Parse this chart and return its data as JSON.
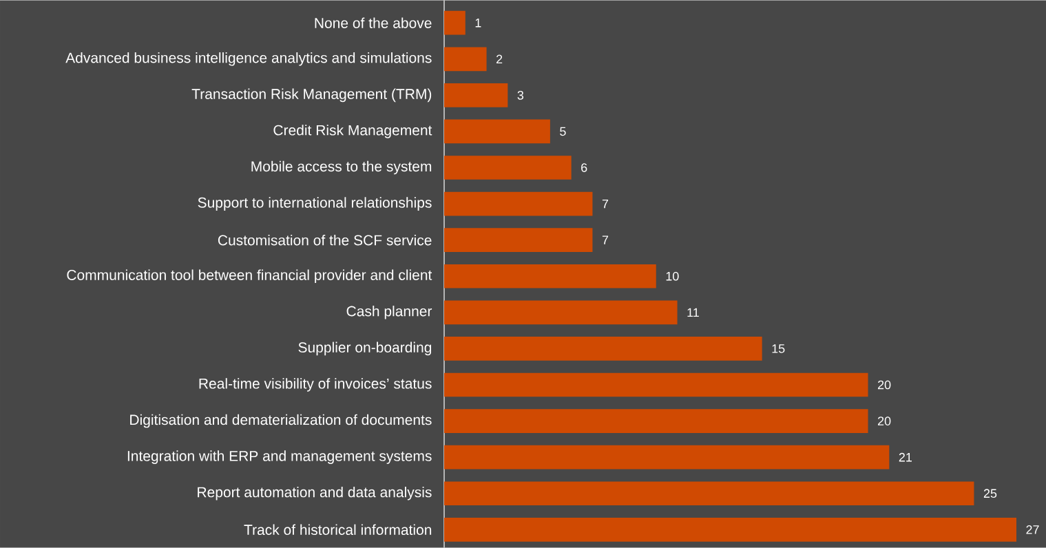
{
  "chart_data": {
    "type": "bar",
    "orientation": "horizontal",
    "data_labels": true,
    "color": "#d04a02",
    "categories": [
      "None of the above",
      "Advanced business intelligence analytics and simulations",
      "Transaction Risk Management (TRM)",
      "Credit Risk Management",
      "Mobile access to the system",
      "Support to international relationships",
      "Customisation of the SCF service",
      "Communication tool between financial provider and client",
      "Cash planner",
      "Supplier on-boarding",
      "Real-time visibility of invoices’ status",
      "Digitisation and dematerialization of documents",
      "Integration with ERP and management systems",
      "Report automation and data analysis",
      "Track of historical information"
    ],
    "values": [
      1,
      2,
      3,
      5,
      6,
      7,
      7,
      10,
      11,
      15,
      20,
      20,
      21,
      25,
      27
    ]
  }
}
